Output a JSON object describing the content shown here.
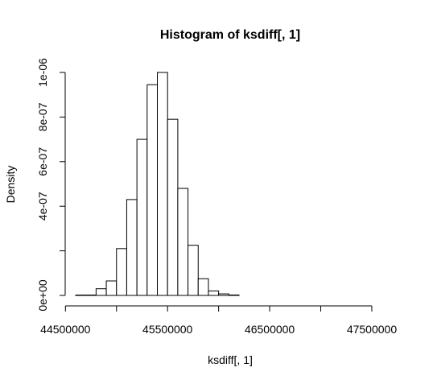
{
  "chart_data": {
    "type": "bar",
    "title": "Histogram of ksdiff[, 1]",
    "xlabel": "ksdiff[, 1]",
    "ylabel": "Density",
    "xlim": [
      44600000,
      47650000
    ],
    "ylim": [
      0,
      1e-06
    ],
    "x_ticks": [
      44500000,
      45500000,
      46500000,
      47500000
    ],
    "x_tick_labels": [
      "44500000",
      "45500000",
      "46500000",
      "47500000"
    ],
    "x_minor_ticks": [
      45000000,
      46000000,
      47000000
    ],
    "y_ticks": [
      0,
      2e-07,
      4e-07,
      6e-07,
      8e-07,
      1e-06
    ],
    "y_tick_labels": [
      "0e+00",
      "",
      "4e-07",
      "6e-07",
      "8e-07",
      "1e-06"
    ],
    "grid": false,
    "bin_width": 100000,
    "bins": [
      {
        "start": 44600000,
        "end": 44700000,
        "density": 0.0
      },
      {
        "start": 44700000,
        "end": 44800000,
        "density": 0.0
      },
      {
        "start": 44800000,
        "end": 44900000,
        "density": 3e-08
      },
      {
        "start": 44900000,
        "end": 45000000,
        "density": 6.5e-08
      },
      {
        "start": 45000000,
        "end": 45100000,
        "density": 2.1e-07
      },
      {
        "start": 45100000,
        "end": 45200000,
        "density": 4.3e-07
      },
      {
        "start": 45200000,
        "end": 45300000,
        "density": 7e-07
      },
      {
        "start": 45300000,
        "end": 45400000,
        "density": 9.45e-07
      },
      {
        "start": 45400000,
        "end": 45500000,
        "density": 1e-06
      },
      {
        "start": 45500000,
        "end": 45600000,
        "density": 7.9e-07
      },
      {
        "start": 45600000,
        "end": 45700000,
        "density": 4.8e-07
      },
      {
        "start": 45700000,
        "end": 45800000,
        "density": 2.25e-07
      },
      {
        "start": 45800000,
        "end": 45900000,
        "density": 7.5e-08
      },
      {
        "start": 45900000,
        "end": 46000000,
        "density": 2e-08
      },
      {
        "start": 46000000,
        "end": 46100000,
        "density": 7e-09
      },
      {
        "start": 46100000,
        "end": 46200000,
        "density": 2e-09
      }
    ]
  }
}
